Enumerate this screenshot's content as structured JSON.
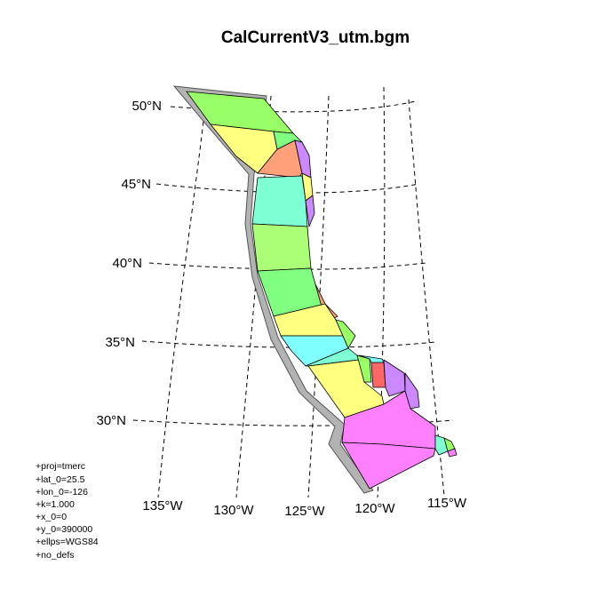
{
  "title": "CalCurrentV3_utm.bgm",
  "latitude_labels": [
    "50°N",
    "45°N",
    "40°N",
    "35°N",
    "30°N"
  ],
  "longitude_labels": [
    "135°W",
    "130°W",
    "125°W",
    "120°W",
    "115°W"
  ],
  "projection_parameters": [
    "+proj=tmerc",
    "+lat_0=25.5",
    "+lon_0=-126",
    "+k=1.000",
    "+x_0=0",
    "+y_0=390000",
    "+ellps=WGS84",
    "+no_defs"
  ],
  "colors": {
    "green": "#99ff66",
    "light_green": "#80ff80",
    "yellow_green": "#aaff77",
    "yellow": "#ffff80",
    "salmon": "#ffa07a",
    "aquamarine": "#7fffd4",
    "cyan": "#80ffff",
    "magenta": "#ff80ff",
    "purple": "#cc88ff",
    "red": "#ff6666",
    "shadow": "#b3b3b3"
  }
}
